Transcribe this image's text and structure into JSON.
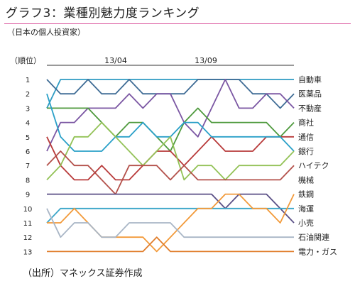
{
  "title": "グラフ3：業種別魅力度ランキング",
  "subtitle": "（日本の個人投資家）",
  "source": "（出所）マネックス証券作成",
  "chart_data": {
    "type": "line",
    "ylabel": "（順位）",
    "ylim": [
      13,
      1
    ],
    "y_ticks": [
      "1",
      "2",
      "3",
      "4",
      "5",
      "6",
      "7",
      "8",
      "9",
      "10",
      "11",
      "12",
      "13"
    ],
    "period_labels": [
      "13/04",
      "13/09"
    ],
    "x": [
      0,
      1,
      2,
      3,
      4,
      5,
      6,
      7,
      8,
      9,
      10,
      11,
      12,
      13,
      14,
      15,
      16,
      17,
      18
    ],
    "grid": false,
    "legend": "right",
    "series": [
      {
        "name": "自動車",
        "color": "#2e9bc3",
        "values": [
          3,
          1,
          1,
          1,
          1,
          1,
          1,
          1,
          1,
          1,
          1,
          1,
          1,
          1,
          1,
          1,
          1,
          1,
          1
        ]
      },
      {
        "name": "医薬品",
        "color": "#3f6c95",
        "values": [
          1,
          2,
          2,
          1,
          2,
          2,
          1,
          2,
          2,
          2,
          2,
          1,
          1,
          1,
          1,
          2,
          2,
          3,
          2
        ]
      },
      {
        "name": "不動産",
        "color": "#7b57a3",
        "values": [
          6,
          4,
          4,
          3,
          3,
          3,
          2,
          3,
          2,
          2,
          4,
          5,
          3,
          1,
          3,
          3,
          2,
          2,
          3
        ]
      },
      {
        "name": "商社",
        "color": "#4f9a3e",
        "values": [
          3,
          3,
          3,
          3,
          4,
          5,
          4,
          4,
          5,
          6,
          4,
          3,
          4,
          4,
          4,
          4,
          4,
          5,
          4
        ]
      },
      {
        "name": "通信",
        "color": "#b83a3a",
        "values": [
          5,
          7,
          8,
          8,
          7,
          8,
          8,
          7,
          6,
          6,
          7,
          6,
          5,
          6,
          6,
          6,
          5,
          5,
          5
        ]
      },
      {
        "name": "銀行",
        "color": "#2aa0c8",
        "values": [
          2,
          5,
          6,
          6,
          6,
          5,
          5,
          4,
          5,
          5,
          4,
          4,
          5,
          5,
          5,
          5,
          5,
          5,
          6
        ]
      },
      {
        "name": "ハイテク",
        "color": "#93c257",
        "values": [
          8,
          7,
          5,
          5,
          4,
          5,
          6,
          7,
          6,
          5,
          8,
          7,
          7,
          8,
          7,
          7,
          7,
          7,
          6
        ]
      },
      {
        "name": "機械",
        "color": "#b3504a",
        "values": [
          7,
          6,
          7,
          7,
          8,
          9,
          7,
          7,
          7,
          8,
          7,
          8,
          8,
          8,
          8,
          8,
          8,
          8,
          7
        ]
      },
      {
        "name": "鉄鋼",
        "color": "#5a4f86",
        "values": [
          9,
          9,
          9,
          9,
          9,
          9,
          9,
          9,
          9,
          9,
          9,
          9,
          9,
          10,
          9,
          9,
          9,
          10,
          11
        ]
      },
      {
        "name": "海運",
        "color": "#3aa5c8",
        "values": [
          11,
          10,
          10,
          10,
          10,
          10,
          10,
          10,
          10,
          10,
          10,
          10,
          10,
          10,
          10,
          10,
          10,
          10,
          10
        ]
      },
      {
        "name": "小売",
        "color": "#f29a3a",
        "values": [
          11,
          11,
          10,
          11,
          12,
          12,
          12,
          12,
          13,
          12,
          11,
          10,
          10,
          9,
          9,
          10,
          10,
          11,
          9
        ]
      },
      {
        "name": "石油関連",
        "color": "#a9b6c6",
        "values": [
          10,
          12,
          11,
          11,
          12,
          12,
          11,
          11,
          11,
          11,
          12,
          12,
          12,
          12,
          12,
          12,
          12,
          12,
          12
        ]
      },
      {
        "name": "電力・ガス",
        "color": "#e07d2a",
        "values": [
          13,
          13,
          13,
          13,
          13,
          13,
          13,
          13,
          12,
          13,
          13,
          13,
          13,
          13,
          13,
          13,
          13,
          13,
          13
        ]
      }
    ]
  }
}
